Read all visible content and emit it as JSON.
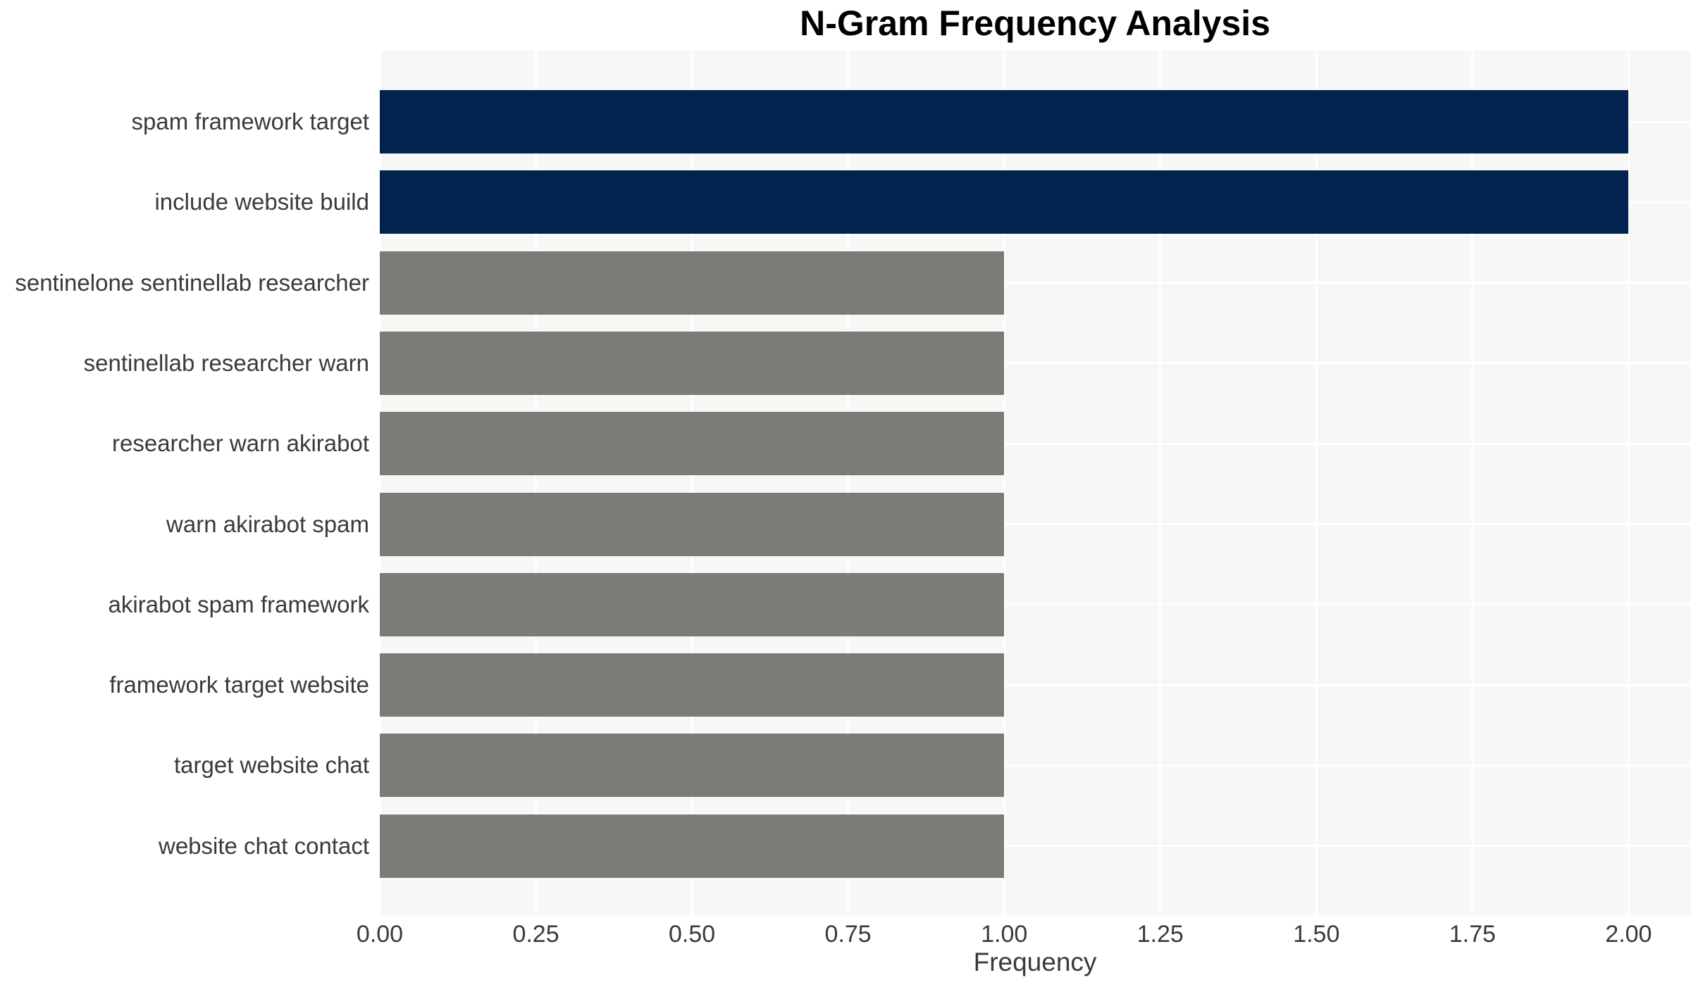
{
  "chart_data": {
    "type": "bar",
    "orientation": "horizontal",
    "title": "N-Gram Frequency Analysis",
    "xlabel": "Frequency",
    "ylabel": "",
    "categories": [
      "spam framework target",
      "include website build",
      "sentinelone sentinellab researcher",
      "sentinellab researcher warn",
      "researcher warn akirabot",
      "warn akirabot spam",
      "akirabot spam framework",
      "framework target website",
      "target website chat",
      "website chat contact"
    ],
    "values": [
      2,
      2,
      1,
      1,
      1,
      1,
      1,
      1,
      1,
      1
    ],
    "xlim": [
      0,
      2.1
    ],
    "xticks": [
      0,
      0.25,
      0.5,
      0.75,
      1.0,
      1.25,
      1.5,
      1.75,
      2.0
    ],
    "xtick_labels": [
      "0.00",
      "0.25",
      "0.50",
      "0.75",
      "1.00",
      "1.25",
      "1.50",
      "1.75",
      "2.00"
    ],
    "legend": "none",
    "grid": "x and y gridlines, white on light-gray panel",
    "bar_colors": [
      "#02234e",
      "#02234e",
      "#7c7b77",
      "#7c7b77",
      "#7c7b77",
      "#7c7b77",
      "#7c7b77",
      "#7c7b77",
      "#7c7b77",
      "#7c7b77"
    ],
    "colors": {
      "highlight_bar": "#02234e",
      "default_bar": "#7c7b77",
      "plot_background": "#f7f7f6",
      "gridline": "#ffffff",
      "tick_text": "#3a3a3a",
      "title_text": "#000000",
      "page_background": "#ffffff"
    }
  }
}
